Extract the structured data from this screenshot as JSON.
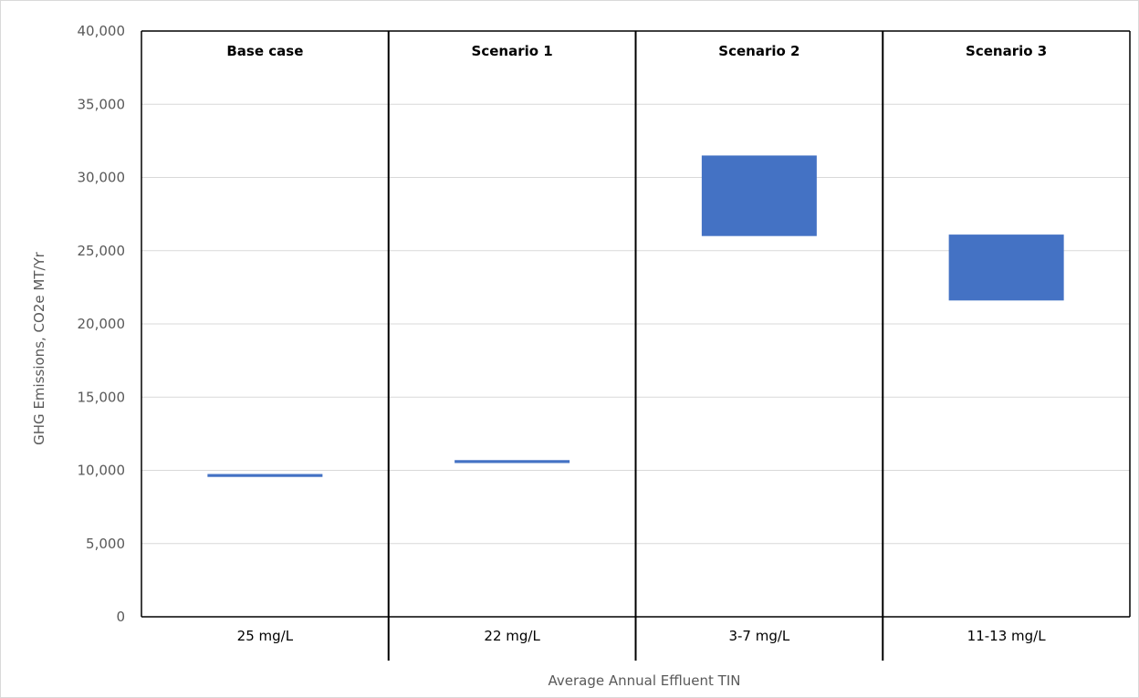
{
  "chart_data": {
    "type": "bar",
    "subtype": "floating-range",
    "categories": [
      "25 mg/L",
      "22 mg/L",
      "3-7 mg/L",
      "11-13 mg/L"
    ],
    "panel_labels": [
      "Base case",
      "Scenario 1",
      "Scenario 2",
      "Scenario 3"
    ],
    "series": [
      {
        "low": [
          9550,
          10500,
          26000,
          21600
        ],
        "high": [
          9750,
          10700,
          31500,
          26100
        ]
      }
    ],
    "xlabel": "Average Annual Effluent TIN",
    "ylabel": "GHG Emissions, CO2e MT/Yr",
    "ylim": [
      0,
      40000
    ],
    "yticks": [
      0,
      5000,
      10000,
      15000,
      20000,
      25000,
      30000,
      35000,
      40000
    ],
    "ytick_labels": [
      "0",
      "5,000",
      "10,000",
      "15,000",
      "20,000",
      "25,000",
      "30,000",
      "35,000",
      "40,000"
    ],
    "grid": true,
    "legend": "none",
    "colors": {
      "bar": "#4472C4",
      "grid": "#D9D9D9",
      "axis": "#000000"
    }
  }
}
